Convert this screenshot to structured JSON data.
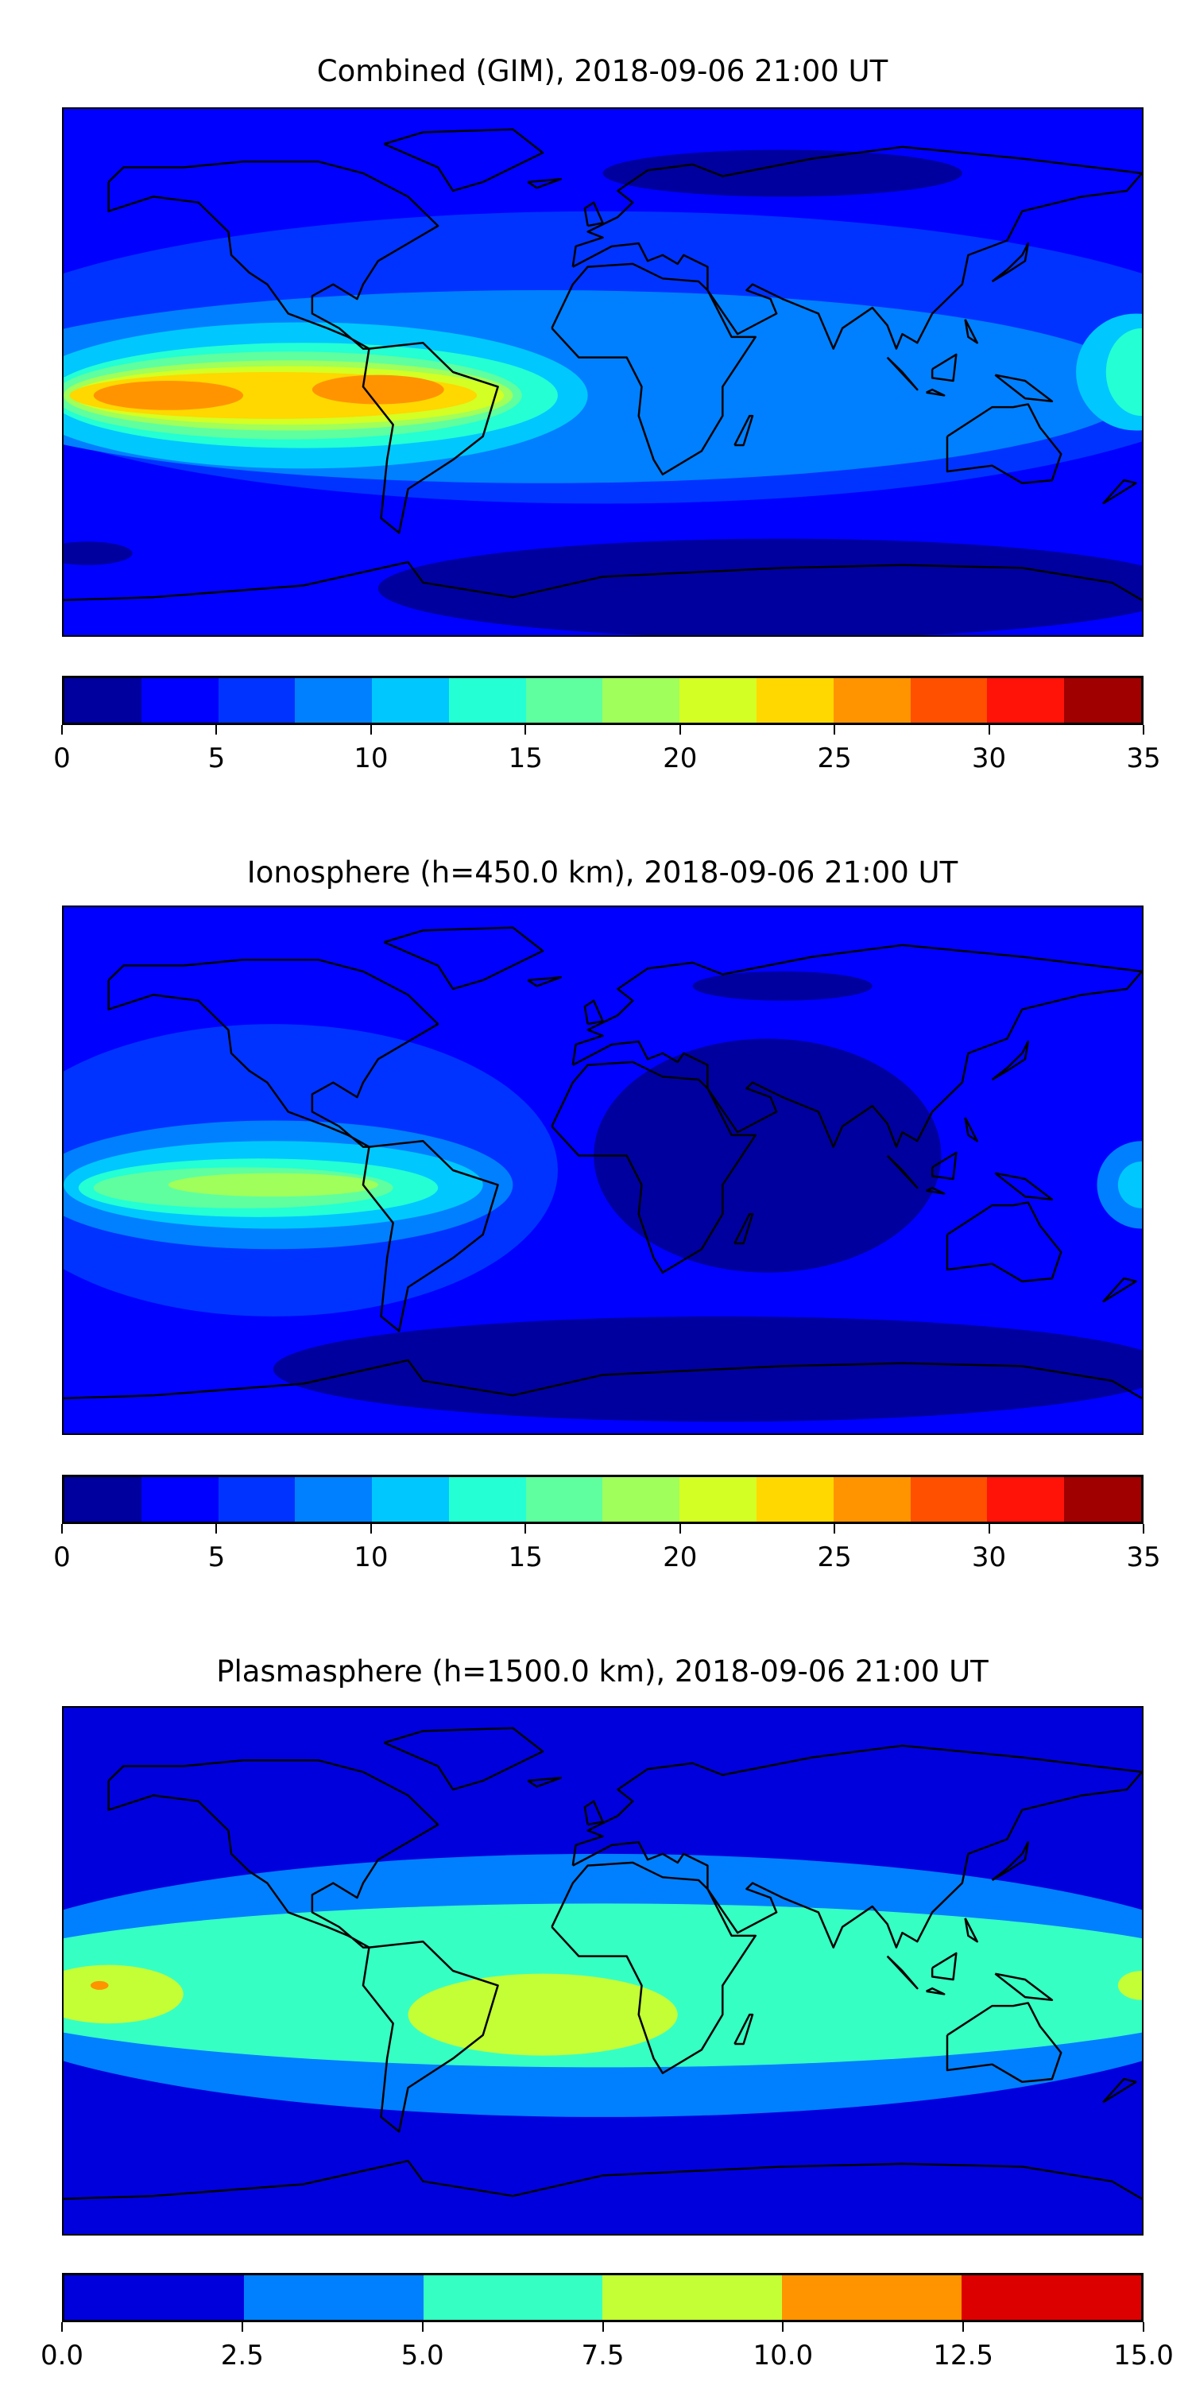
{
  "chart_data": [
    {
      "type": "heatmap",
      "title": "Combined (GIM), 2018-09-06 21:00 UT",
      "levels": [
        0,
        2.5,
        5,
        7.5,
        10,
        12.5,
        15,
        17.5,
        20,
        22.5,
        25,
        27.5,
        30,
        32.5,
        35
      ],
      "colors": [
        "#00009f",
        "#0000ff",
        "#0033ff",
        "#0080ff",
        "#00c8ff",
        "#24ffd4",
        "#5fff9f",
        "#a0ff5a",
        "#d4ff24",
        "#ffd800",
        "#ff9400",
        "#ff5000",
        "#ff1208",
        "#a00000"
      ],
      "ticks": [
        0,
        5,
        10,
        15,
        20,
        25,
        30,
        35
      ],
      "tick_labels": [
        "0",
        "5",
        "10",
        "15",
        "20",
        "25",
        "30",
        "35"
      ],
      "background_level": 1,
      "regions": [
        {
          "lon": 60,
          "lat": 68,
          "rlon": 60,
          "rlat": 8,
          "level": 0
        },
        {
          "lon": 60,
          "lat": -74,
          "rlon": 135,
          "rlat": 17,
          "level": 0
        },
        {
          "lon": -172,
          "lat": -62,
          "rlon": 15,
          "rlat": 4,
          "level": 0
        },
        {
          "lon": 0,
          "lat": 5,
          "rlon": 220,
          "rlat": 50,
          "level": 2
        },
        {
          "lon": -20,
          "lat": -5,
          "rlon": 200,
          "rlat": 33,
          "level": 3
        },
        {
          "lon": -100,
          "lat": -8,
          "rlon": 95,
          "rlat": 25,
          "level": 4
        },
        {
          "lon": 178,
          "lat": 0,
          "rlon": 20,
          "rlat": 20,
          "level": 4
        },
        {
          "lon": -100,
          "lat": -8,
          "rlon": 85,
          "rlat": 18,
          "level": 5
        },
        {
          "lon": 180,
          "lat": 0,
          "rlon": 12,
          "rlat": 15,
          "level": 5
        },
        {
          "lon": -105,
          "lat": -8,
          "rlon": 78,
          "rlat": 15,
          "level": 6
        },
        {
          "lon": -105,
          "lat": -8,
          "rlon": 75,
          "rlat": 12,
          "level": 7
        },
        {
          "lon": -105,
          "lat": -8,
          "rlon": 72,
          "rlat": 10,
          "level": 8
        },
        {
          "lon": -110,
          "lat": -8,
          "rlon": 68,
          "rlat": 8,
          "level": 9
        },
        {
          "lon": -145,
          "lat": -8,
          "rlon": 25,
          "rlat": 5,
          "level": 10
        },
        {
          "lon": -75,
          "lat": -6,
          "rlon": 22,
          "rlat": 5,
          "level": 10
        }
      ]
    },
    {
      "type": "heatmap",
      "title": "Ionosphere  (h=450.0 km), 2018-09-06 21:00 UT",
      "levels": [
        0,
        2.5,
        5,
        7.5,
        10,
        12.5,
        15,
        17.5,
        20,
        22.5,
        25,
        27.5,
        30,
        32.5,
        35
      ],
      "colors": [
        "#00009f",
        "#0000ff",
        "#0033ff",
        "#0080ff",
        "#00c8ff",
        "#24ffd4",
        "#5fff9f",
        "#a0ff5a",
        "#d4ff24",
        "#ffd800",
        "#ff9400",
        "#ff5000",
        "#ff1208",
        "#a00000"
      ],
      "ticks": [
        0,
        5,
        10,
        15,
        20,
        25,
        30,
        35
      ],
      "tick_labels": [
        "0",
        "5",
        "10",
        "15",
        "20",
        "25",
        "30",
        "35"
      ],
      "background_level": 1,
      "regions": [
        {
          "lon": 55,
          "lat": 5,
          "rlon": 58,
          "rlat": 40,
          "level": 0
        },
        {
          "lon": 40,
          "lat": -68,
          "rlon": 150,
          "rlat": 18,
          "level": 0
        },
        {
          "lon": 60,
          "lat": 63,
          "rlon": 30,
          "rlat": 5,
          "level": 0
        },
        {
          "lon": -110,
          "lat": 0,
          "rlon": 95,
          "rlat": 50,
          "level": 2
        },
        {
          "lon": -110,
          "lat": -5,
          "rlon": 80,
          "rlat": 22,
          "level": 3
        },
        {
          "lon": 180,
          "lat": -5,
          "rlon": 15,
          "rlat": 15,
          "level": 3
        },
        {
          "lon": -110,
          "lat": -5,
          "rlon": 70,
          "rlat": 15,
          "level": 4
        },
        {
          "lon": 180,
          "lat": -5,
          "rlon": 8,
          "rlat": 8,
          "level": 4
        },
        {
          "lon": -115,
          "lat": -6,
          "rlon": 60,
          "rlat": 10,
          "level": 5
        },
        {
          "lon": -120,
          "lat": -6,
          "rlon": 50,
          "rlat": 7,
          "level": 6
        },
        {
          "lon": -110,
          "lat": -5,
          "rlon": 35,
          "rlat": 4,
          "level": 7
        }
      ]
    },
    {
      "type": "heatmap",
      "title": "Plasmasphere (h=1500.0 km), 2018-09-06 21:00 UT",
      "levels": [
        0,
        2.5,
        5,
        7.5,
        10,
        12.5,
        15
      ],
      "colors": [
        "#0000dd",
        "#0080ff",
        "#36ffc4",
        "#c4ff36",
        "#ff9400",
        "#dd0000"
      ],
      "ticks": [
        0,
        2.5,
        5,
        7.5,
        10,
        12.5,
        15
      ],
      "tick_labels": [
        "0.0",
        "2.5",
        "5.0",
        "7.5",
        "10.0",
        "12.5",
        "15.0"
      ],
      "background_level": 0,
      "regions": [
        {
          "lon": 0,
          "lat": -5,
          "rlon": 220,
          "rlat": 45,
          "level": 1
        },
        {
          "lon": 0,
          "lat": -5,
          "rlon": 220,
          "rlat": 28,
          "level": 2
        },
        {
          "lon": -20,
          "lat": -15,
          "rlon": 45,
          "rlat": 14,
          "level": 3
        },
        {
          "lon": -165,
          "lat": -8,
          "rlon": 25,
          "rlat": 10,
          "level": 3
        },
        {
          "lon": 180,
          "lat": -5,
          "rlon": 8,
          "rlat": 5,
          "level": 3
        },
        {
          "lon": 105,
          "lat": 5,
          "rlon": 6,
          "rlat": 6,
          "level": 1
        },
        {
          "lon": -168,
          "lat": -5,
          "rlon": 3,
          "rlat": 1.5,
          "level": 4
        }
      ]
    }
  ]
}
